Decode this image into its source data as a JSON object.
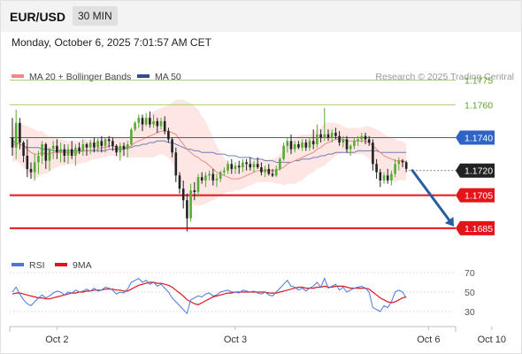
{
  "header": {
    "symbol": "EUR/USD",
    "timeframe": "30 MIN",
    "timestamp": "Monday, October 6, 2025 7:01:57 AM CET"
  },
  "legend": {
    "ma20": "MA 20 + Bollinger Bands",
    "ma50": "MA 50",
    "research": "Research © 2025 Trading Central",
    "rsi": "RSI",
    "ma9": "9MA"
  },
  "colors": {
    "up_candle": "#55aa33",
    "down_candle": "#222222",
    "ma20": "#f08a80",
    "bollinger_fill": "#fde3e0",
    "ma50": "#6c7fb4",
    "pivot_blue": "#2f63c8",
    "support_red": "#e4141b",
    "resistance_green": "#a8cf7e",
    "rsi_line": "#4a78d6",
    "rsi_ma": "#e4141b",
    "arrow": "#2a5d9f",
    "current_price_bg": "#222222"
  },
  "chart_data": [
    {
      "type": "candlestick",
      "ylim": [
        1.1672,
        1.1786
      ],
      "levels": [
        {
          "value": 1.1775,
          "label": "1.1775",
          "kind": "resistance"
        },
        {
          "value": 1.176,
          "label": "1.1760",
          "kind": "resistance"
        },
        {
          "value": 1.174,
          "label": "1.1740",
          "kind": "pivot"
        },
        {
          "value": 1.172,
          "label": "1.1720",
          "kind": "current"
        },
        {
          "value": 1.1705,
          "label": "1.1705",
          "kind": "support"
        },
        {
          "value": 1.1685,
          "label": "1.1685",
          "kind": "support"
        }
      ],
      "projection": {
        "from": 1.172,
        "to": 1.1685
      },
      "x_labels": [
        {
          "index": 12,
          "label": "Oct 2"
        },
        {
          "index": 60,
          "label": "Oct 3"
        },
        {
          "index": 112,
          "label": "Oct 6"
        },
        {
          "index": 129,
          "label": "Oct 10"
        }
      ],
      "candles": [
        [
          1.174,
          1.1752,
          1.1729,
          1.1734
        ],
        [
          1.1734,
          1.1757,
          1.1727,
          1.1749
        ],
        [
          1.1749,
          1.1752,
          1.1733,
          1.1737
        ],
        [
          1.1737,
          1.1738,
          1.1725,
          1.1729
        ],
        [
          1.1729,
          1.1739,
          1.1716,
          1.1721
        ],
        [
          1.1721,
          1.1725,
          1.1715,
          1.1719
        ],
        [
          1.1719,
          1.173,
          1.1714,
          1.1725
        ],
        [
          1.1725,
          1.1732,
          1.1718,
          1.1729
        ],
        [
          1.1729,
          1.1738,
          1.1724,
          1.1736
        ],
        [
          1.1736,
          1.1737,
          1.1721,
          1.1726
        ],
        [
          1.1726,
          1.1734,
          1.172,
          1.1733
        ],
        [
          1.1733,
          1.1738,
          1.1727,
          1.1735
        ],
        [
          1.1735,
          1.1739,
          1.1727,
          1.1731
        ],
        [
          1.1731,
          1.1737,
          1.1725,
          1.1733
        ],
        [
          1.1733,
          1.1736,
          1.1725,
          1.1729
        ],
        [
          1.1729,
          1.1736,
          1.1724,
          1.1733
        ],
        [
          1.1733,
          1.1738,
          1.1727,
          1.1729
        ],
        [
          1.1729,
          1.1736,
          1.1723,
          1.1734
        ],
        [
          1.1734,
          1.1737,
          1.173,
          1.1732
        ],
        [
          1.1732,
          1.1739,
          1.1729,
          1.1736
        ],
        [
          1.1736,
          1.1737,
          1.1729,
          1.1734
        ],
        [
          1.1734,
          1.1739,
          1.173,
          1.1737
        ],
        [
          1.1737,
          1.174,
          1.1731,
          1.1734
        ],
        [
          1.1734,
          1.174,
          1.1731,
          1.1738
        ],
        [
          1.1738,
          1.1741,
          1.1731,
          1.1735
        ],
        [
          1.1735,
          1.174,
          1.1731,
          1.1739
        ],
        [
          1.1739,
          1.1741,
          1.1734,
          1.1738
        ],
        [
          1.1738,
          1.174,
          1.1732,
          1.1735
        ],
        [
          1.1735,
          1.1736,
          1.1729,
          1.1731
        ],
        [
          1.1731,
          1.1737,
          1.1726,
          1.1735
        ],
        [
          1.1735,
          1.1737,
          1.1729,
          1.1733
        ],
        [
          1.1733,
          1.1738,
          1.1728,
          1.1736
        ],
        [
          1.1736,
          1.1746,
          1.1735,
          1.1745
        ],
        [
          1.1745,
          1.175,
          1.1744,
          1.1749
        ],
        [
          1.1749,
          1.1754,
          1.1746,
          1.1752
        ],
        [
          1.1752,
          1.1754,
          1.1744,
          1.1748
        ],
        [
          1.1748,
          1.1755,
          1.1747,
          1.1752
        ],
        [
          1.1752,
          1.1756,
          1.1746,
          1.1748
        ],
        [
          1.1748,
          1.1754,
          1.1746,
          1.175
        ],
        [
          1.175,
          1.1752,
          1.1743,
          1.1747
        ],
        [
          1.1747,
          1.1752,
          1.1745,
          1.175
        ],
        [
          1.175,
          1.1753,
          1.1742,
          1.1744
        ],
        [
          1.1744,
          1.1746,
          1.1737,
          1.1739
        ],
        [
          1.1739,
          1.174,
          1.1728,
          1.1731
        ],
        [
          1.1731,
          1.1734,
          1.1713,
          1.1717
        ],
        [
          1.1717,
          1.1719,
          1.1706,
          1.1709
        ],
        [
          1.1709,
          1.1714,
          1.1697,
          1.1702
        ],
        [
          1.1702,
          1.1706,
          1.1683,
          1.1691
        ],
        [
          1.1691,
          1.1712,
          1.1689,
          1.1708
        ],
        [
          1.1708,
          1.1713,
          1.1702,
          1.1707
        ],
        [
          1.1707,
          1.1718,
          1.1704,
          1.1716
        ],
        [
          1.1716,
          1.1719,
          1.1712,
          1.1714
        ],
        [
          1.1714,
          1.1719,
          1.171,
          1.1717
        ],
        [
          1.1717,
          1.172,
          1.1714,
          1.1718
        ],
        [
          1.1718,
          1.1721,
          1.1711,
          1.1714
        ],
        [
          1.1714,
          1.1718,
          1.171,
          1.1715
        ],
        [
          1.1715,
          1.172,
          1.1713,
          1.1719
        ],
        [
          1.1719,
          1.1722,
          1.1717,
          1.172
        ],
        [
          1.172,
          1.1726,
          1.1718,
          1.1724
        ],
        [
          1.1724,
          1.1727,
          1.1718,
          1.1721
        ],
        [
          1.1721,
          1.1725,
          1.1718,
          1.1723
        ],
        [
          1.1723,
          1.1726,
          1.1718,
          1.1722
        ],
        [
          1.1722,
          1.1727,
          1.1719,
          1.1725
        ],
        [
          1.1725,
          1.1727,
          1.172,
          1.1724
        ],
        [
          1.1724,
          1.1728,
          1.172,
          1.1722
        ],
        [
          1.1722,
          1.1726,
          1.1719,
          1.1724
        ],
        [
          1.1724,
          1.1728,
          1.1721,
          1.1722
        ],
        [
          1.1722,
          1.1725,
          1.1717,
          1.1719
        ],
        [
          1.1719,
          1.1723,
          1.1716,
          1.1721
        ],
        [
          1.1721,
          1.1724,
          1.1717,
          1.1718
        ],
        [
          1.1718,
          1.1721,
          1.1716,
          1.1717
        ],
        [
          1.1717,
          1.1723,
          1.1716,
          1.1721
        ],
        [
          1.1721,
          1.1728,
          1.172,
          1.1727
        ],
        [
          1.1727,
          1.1737,
          1.1726,
          1.1735
        ],
        [
          1.1735,
          1.174,
          1.1731,
          1.1738
        ],
        [
          1.1738,
          1.1742,
          1.173,
          1.1733
        ],
        [
          1.1733,
          1.1738,
          1.1731,
          1.1736
        ],
        [
          1.1736,
          1.1738,
          1.1733,
          1.1734
        ],
        [
          1.1734,
          1.1739,
          1.1732,
          1.1737
        ],
        [
          1.1737,
          1.1739,
          1.1732,
          1.1734
        ],
        [
          1.1734,
          1.174,
          1.1732,
          1.1738
        ],
        [
          1.1738,
          1.1745,
          1.1733,
          1.1736
        ],
        [
          1.1736,
          1.1748,
          1.1734,
          1.1742
        ],
        [
          1.1742,
          1.1745,
          1.1737,
          1.174
        ],
        [
          1.174,
          1.1758,
          1.1738,
          1.1742
        ],
        [
          1.1742,
          1.1745,
          1.1738,
          1.174
        ],
        [
          1.174,
          1.1745,
          1.1737,
          1.1743
        ],
        [
          1.1743,
          1.1746,
          1.1739,
          1.1741
        ],
        [
          1.1741,
          1.1744,
          1.1735,
          1.1737
        ],
        [
          1.1737,
          1.1741,
          1.1734,
          1.1739
        ],
        [
          1.1739,
          1.1741,
          1.1731,
          1.1733
        ],
        [
          1.1733,
          1.1736,
          1.1729,
          1.1735
        ],
        [
          1.1735,
          1.174,
          1.1733,
          1.1738
        ],
        [
          1.1738,
          1.1741,
          1.1735,
          1.1739
        ],
        [
          1.1739,
          1.1743,
          1.1737,
          1.1741
        ],
        [
          1.1741,
          1.1743,
          1.1736,
          1.1739
        ],
        [
          1.1739,
          1.1741,
          1.1735,
          1.1737
        ],
        [
          1.1737,
          1.1739,
          1.172,
          1.1724
        ],
        [
          1.1724,
          1.1727,
          1.1715,
          1.1719
        ],
        [
          1.1719,
          1.1721,
          1.171,
          1.1714
        ],
        [
          1.1714,
          1.1719,
          1.1712,
          1.1717
        ],
        [
          1.1717,
          1.1721,
          1.1712,
          1.1714
        ],
        [
          1.1714,
          1.172,
          1.1711,
          1.1718
        ],
        [
          1.1718,
          1.1727,
          1.1716,
          1.1724
        ],
        [
          1.1724,
          1.1728,
          1.172,
          1.1726
        ],
        [
          1.1726,
          1.1727,
          1.1722,
          1.1725
        ],
        [
          1.1725,
          1.1726,
          1.1719,
          1.1721
        ]
      ],
      "ma20": [
        1.1735,
        1.1737,
        1.1736,
        1.1735,
        1.1733,
        1.1731,
        1.173,
        1.173,
        1.1731,
        1.173,
        1.173,
        1.1731,
        1.1731,
        1.1731,
        1.1731,
        1.1731,
        1.1731,
        1.1731,
        1.1731,
        1.1732,
        1.1732,
        1.1732,
        1.1733,
        1.1733,
        1.1734,
        1.1734,
        1.1735,
        1.1735,
        1.1734,
        1.1734,
        1.1734,
        1.1734,
        1.1735,
        1.1737,
        1.1738,
        1.1739,
        1.174,
        1.1741,
        1.1742,
        1.1743,
        1.1744,
        1.1744,
        1.1744,
        1.1743,
        1.1742,
        1.1739,
        1.1736,
        1.1733,
        1.1731,
        1.1729,
        1.1728,
        1.1726,
        1.1725,
        1.1723,
        1.1721,
        1.1719,
        1.1718,
        1.1717,
        1.1716,
        1.1715,
        1.1715,
        1.1715,
        1.1716,
        1.1717,
        1.1718,
        1.1719,
        1.172,
        1.172,
        1.172,
        1.172,
        1.172,
        1.172,
        1.1721,
        1.1722,
        1.1724,
        1.1725,
        1.1726,
        1.1727,
        1.1728,
        1.1729,
        1.173,
        1.1731,
        1.1733,
        1.1734,
        1.1736,
        1.1737,
        1.1738,
        1.1739,
        1.1739,
        1.1739,
        1.1738,
        1.1738,
        1.1738,
        1.1738,
        1.1738,
        1.1738,
        1.1737,
        1.1735,
        1.1733,
        1.1731,
        1.1729,
        1.1728,
        1.1727,
        1.1726,
        1.1726,
        1.1726,
        1.1725
      ],
      "bb_width": [
        0.001,
        0.0011,
        0.0012,
        0.0013,
        0.0014,
        0.0015,
        0.0015,
        0.0014,
        0.0013,
        0.0012,
        0.0011,
        0.001,
        0.0009,
        0.0008,
        0.0008,
        0.0007,
        0.0007,
        0.0007,
        0.0007,
        0.0007,
        0.0007,
        0.0006,
        0.0006,
        0.0006,
        0.0006,
        0.0006,
        0.0006,
        0.0006,
        0.0006,
        0.0006,
        0.0006,
        0.0006,
        0.0007,
        0.0009,
        0.001,
        0.0011,
        0.0012,
        0.0013,
        0.0014,
        0.0014,
        0.0014,
        0.0015,
        0.0016,
        0.0018,
        0.0021,
        0.0024,
        0.0027,
        0.0029,
        0.003,
        0.003,
        0.0029,
        0.0027,
        0.0025,
        0.0022,
        0.0019,
        0.0016,
        0.0013,
        0.0011,
        0.0009,
        0.0008,
        0.0007,
        0.0007,
        0.0007,
        0.0007,
        0.0007,
        0.0007,
        0.0007,
        0.0007,
        0.0007,
        0.0007,
        0.0007,
        0.0008,
        0.0009,
        0.0011,
        0.0012,
        0.0013,
        0.0014,
        0.0014,
        0.0014,
        0.0013,
        0.0012,
        0.0012,
        0.0012,
        0.0012,
        0.0013,
        0.0012,
        0.0011,
        0.001,
        0.0009,
        0.0008,
        0.0008,
        0.0008,
        0.0008,
        0.0008,
        0.0008,
        0.0009,
        0.001,
        0.0011,
        0.0012,
        0.0013,
        0.0013,
        0.0013,
        0.0013,
        0.0013,
        0.0012,
        0.0012,
        0.0011
      ],
      "ma50": [
        1.1738,
        1.1737,
        1.1736,
        1.1735,
        1.1734,
        1.1734,
        1.1734,
        1.1734,
        1.1733,
        1.1733,
        1.1733,
        1.1732,
        1.1732,
        1.1732,
        1.1732,
        1.1732,
        1.1732,
        1.1732,
        1.1732,
        1.1732,
        1.1732,
        1.1732,
        1.1732,
        1.1732,
        1.1732,
        1.1732,
        1.1733,
        1.1733,
        1.1733,
        1.1733,
        1.1733,
        1.1734,
        1.1734,
        1.1735,
        1.1735,
        1.1736,
        1.1736,
        1.1737,
        1.1737,
        1.1738,
        1.1738,
        1.1738,
        1.1737,
        1.1737,
        1.1736,
        1.1735,
        1.1734,
        1.1733,
        1.1733,
        1.1732,
        1.1732,
        1.1731,
        1.1731,
        1.1731,
        1.1731,
        1.173,
        1.173,
        1.173,
        1.1729,
        1.1729,
        1.1729,
        1.1728,
        1.1728,
        1.1728,
        1.1728,
        1.1727,
        1.1727,
        1.1727,
        1.1726,
        1.1726,
        1.1726,
        1.1725,
        1.1725,
        1.1725,
        1.1725,
        1.1725,
        1.1726,
        1.1726,
        1.1727,
        1.1727,
        1.1727,
        1.1728,
        1.1728,
        1.1729,
        1.1729,
        1.173,
        1.173,
        1.1731,
        1.1731,
        1.1731,
        1.1731,
        1.1731,
        1.1731,
        1.1732,
        1.1732,
        1.1732,
        1.1732,
        1.1732,
        1.1732,
        1.1731,
        1.1731,
        1.1731,
        1.1731,
        1.1731,
        1.1731,
        1.1731,
        1.1731
      ]
    },
    {
      "type": "line",
      "ylim": [
        20,
        80
      ],
      "ticks": [
        {
          "value": 70,
          "label": "70"
        },
        {
          "value": 50,
          "label": "50"
        },
        {
          "value": 30,
          "label": "30"
        }
      ],
      "rsi": [
        50,
        55,
        48,
        42,
        38,
        36,
        40,
        44,
        47,
        44,
        46,
        49,
        51,
        50,
        47,
        50,
        49,
        52,
        50,
        51,
        53,
        51,
        54,
        51,
        52,
        55,
        54,
        52,
        48,
        50,
        49,
        53,
        60,
        62,
        64,
        60,
        62,
        58,
        60,
        56,
        58,
        54,
        50,
        44,
        40,
        36,
        32,
        28,
        42,
        44,
        46,
        45,
        48,
        49,
        46,
        47,
        50,
        51,
        52,
        50,
        50,
        49,
        52,
        51,
        50,
        51,
        49,
        48,
        50,
        47,
        46,
        50,
        54,
        58,
        62,
        56,
        55,
        52,
        54,
        51,
        54,
        56,
        60,
        55,
        64,
        54,
        56,
        58,
        52,
        55,
        50,
        52,
        54,
        55,
        56,
        54,
        50,
        34,
        32,
        30,
        36,
        34,
        40,
        50,
        52,
        50,
        44
      ],
      "ma9": [
        48,
        49,
        49,
        48,
        47,
        46,
        45,
        44,
        44,
        43,
        43,
        44,
        45,
        46,
        47,
        48,
        49,
        49,
        50,
        50,
        51,
        51,
        52,
        52,
        52,
        53,
        53,
        53,
        52,
        52,
        51,
        51,
        53,
        55,
        57,
        58,
        59,
        60,
        60,
        59,
        59,
        58,
        57,
        55,
        52,
        49,
        46,
        42,
        40,
        38,
        37,
        39,
        41,
        43,
        45,
        46,
        47,
        48,
        49,
        49,
        50,
        50,
        50,
        50,
        50,
        50,
        50,
        50,
        50,
        49,
        49,
        49,
        50,
        51,
        52,
        53,
        54,
        55,
        55,
        54,
        54,
        54,
        55,
        55,
        56,
        55,
        55,
        56,
        56,
        56,
        55,
        54,
        54,
        54,
        54,
        54,
        53,
        50,
        47,
        44,
        42,
        40,
        39,
        40,
        42,
        44,
        45
      ]
    }
  ]
}
